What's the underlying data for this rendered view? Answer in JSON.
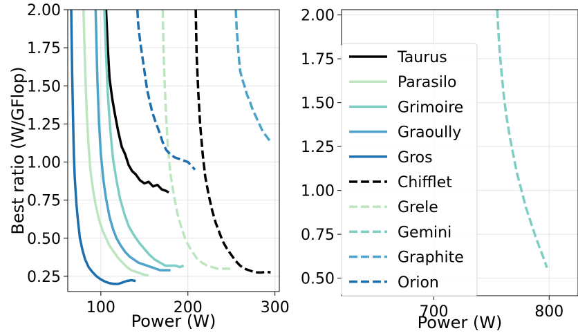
{
  "chart_data": [
    {
      "type": "line",
      "xlabel": "Power (W)",
      "ylabel": "Best ratio (W/GFlop)",
      "xlim": [
        62,
        305
      ],
      "ylim": [
        0.15,
        2.0
      ],
      "xticks": [
        "100",
        "200",
        "300"
      ],
      "yticks": [
        "0.25",
        "0.50",
        "0.75",
        "1.00",
        "1.25",
        "1.50",
        "1.75",
        "2.00"
      ],
      "grid": true,
      "series": [
        {
          "name": "Taurus",
          "color": "#000000",
          "dash": "solid",
          "x": [
            106,
            108,
            110,
            113,
            116,
            120,
            124,
            128,
            132,
            136,
            140,
            145,
            150,
            155,
            160,
            165,
            170,
            175,
            178
          ],
          "y": [
            2.0,
            1.75,
            1.55,
            1.42,
            1.32,
            1.2,
            1.1,
            1.05,
            0.98,
            0.94,
            0.92,
            0.88,
            0.86,
            0.87,
            0.84,
            0.85,
            0.82,
            0.81,
            0.8
          ]
        },
        {
          "name": "Parasilo",
          "color": "#bde5c0",
          "dash": "solid",
          "x": [
            80,
            82,
            84,
            86,
            88,
            91,
            94,
            98,
            102,
            106,
            110,
            115,
            120,
            125,
            130,
            135,
            140,
            145,
            150,
            155
          ],
          "y": [
            2.0,
            1.6,
            1.3,
            1.1,
            0.95,
            0.82,
            0.72,
            0.62,
            0.55,
            0.5,
            0.45,
            0.41,
            0.37,
            0.34,
            0.31,
            0.29,
            0.28,
            0.27,
            0.26,
            0.255
          ]
        },
        {
          "name": "Grimoire",
          "color": "#7ecec4",
          "dash": "solid",
          "x": [
            104,
            106,
            108,
            111,
            114,
            118,
            122,
            127,
            132,
            138,
            144,
            150,
            156,
            162,
            168,
            174,
            180,
            186,
            191,
            195
          ],
          "y": [
            2.0,
            1.7,
            1.45,
            1.2,
            1.02,
            0.88,
            0.76,
            0.66,
            0.58,
            0.52,
            0.47,
            0.43,
            0.39,
            0.36,
            0.34,
            0.32,
            0.32,
            0.32,
            0.31,
            0.32
          ]
        },
        {
          "name": "Graoully",
          "color": "#4da3c9",
          "dash": "solid",
          "x": [
            94,
            96,
            98,
            100,
            103,
            106,
            110,
            114,
            118,
            123,
            128,
            133,
            138,
            143,
            148,
            153,
            158,
            163,
            168,
            172,
            176,
            180
          ],
          "y": [
            2.0,
            1.55,
            1.25,
            1.05,
            0.88,
            0.76,
            0.64,
            0.56,
            0.5,
            0.45,
            0.41,
            0.38,
            0.36,
            0.34,
            0.33,
            0.32,
            0.31,
            0.3,
            0.29,
            0.29,
            0.29,
            0.29
          ]
        },
        {
          "name": "Gros",
          "color": "#1f6fad",
          "dash": "solid",
          "x": [
            66,
            67,
            68,
            69,
            70,
            72,
            74,
            76,
            79,
            82,
            86,
            90,
            95,
            100,
            105,
            110,
            115,
            120,
            125,
            130,
            135,
            140
          ],
          "y": [
            2.0,
            1.6,
            1.3,
            1.05,
            0.9,
            0.72,
            0.6,
            0.5,
            0.42,
            0.36,
            0.31,
            0.28,
            0.25,
            0.23,
            0.215,
            0.205,
            0.2,
            0.2,
            0.21,
            0.22,
            0.225,
            0.22
          ]
        },
        {
          "name": "Chifflet",
          "color": "#000000",
          "dash": "dashed",
          "x": [
            209,
            210,
            212,
            214,
            217,
            220,
            224,
            228,
            232,
            236,
            240,
            245,
            250,
            255,
            260,
            265,
            270,
            275,
            280,
            285,
            290,
            295
          ],
          "y": [
            2.0,
            1.7,
            1.45,
            1.25,
            1.05,
            0.9,
            0.78,
            0.68,
            0.6,
            0.54,
            0.48,
            0.43,
            0.39,
            0.35,
            0.32,
            0.3,
            0.29,
            0.28,
            0.275,
            0.275,
            0.28,
            0.275
          ]
        },
        {
          "name": "Grele",
          "color": "#bde5c0",
          "dash": "dashed",
          "x": [
            171,
            172,
            173,
            175,
            177,
            180,
            184,
            188,
            193,
            198,
            204,
            210,
            216,
            222,
            228,
            234,
            240,
            245,
            250
          ],
          "y": [
            2.0,
            1.75,
            1.55,
            1.3,
            1.1,
            0.92,
            0.78,
            0.66,
            0.56,
            0.48,
            0.42,
            0.37,
            0.34,
            0.32,
            0.31,
            0.3,
            0.3,
            0.3,
            0.3
          ]
        },
        {
          "name": "Graphite",
          "color": "#4da3c9",
          "dash": "dashed",
          "x": [
            255,
            256,
            258,
            260,
            262,
            265,
            268,
            271,
            274,
            278,
            282,
            286,
            290,
            294
          ],
          "y": [
            2.0,
            1.88,
            1.72,
            1.6,
            1.55,
            1.5,
            1.44,
            1.4,
            1.35,
            1.3,
            1.25,
            1.2,
            1.17,
            1.14
          ]
        },
        {
          "name": "Orion",
          "color": "#1f6fad",
          "dash": "dashed",
          "x": [
            142,
            143,
            145,
            147,
            150,
            153,
            156,
            159,
            163,
            167,
            171,
            175,
            180,
            185,
            190,
            195,
            200,
            205,
            208
          ],
          "y": [
            2.0,
            1.9,
            1.8,
            1.72,
            1.6,
            1.48,
            1.4,
            1.33,
            1.26,
            1.2,
            1.13,
            1.08,
            1.05,
            1.03,
            1.02,
            1.01,
            1.0,
            0.97,
            0.95
          ]
        }
      ]
    },
    {
      "type": "line",
      "xlabel": "Power (W)",
      "ylabel": "",
      "xlim": [
        620,
        825
      ],
      "ylim": [
        0.4,
        2.03
      ],
      "xticks": [
        "700",
        "800"
      ],
      "yticks": [
        "0.50",
        "0.75",
        "1.00",
        "1.25",
        "1.50",
        "1.75",
        "2.00"
      ],
      "grid": true,
      "series": [
        {
          "name": "Gemini",
          "color": "#7ecec4",
          "dash": "dashed",
          "x": [
            755,
            756,
            757,
            759,
            761,
            763,
            766,
            769,
            772,
            776,
            780,
            784,
            788,
            792,
            796,
            798
          ],
          "y": [
            2.03,
            1.9,
            1.8,
            1.65,
            1.52,
            1.42,
            1.3,
            1.2,
            1.1,
            1.0,
            0.9,
            0.82,
            0.74,
            0.67,
            0.6,
            0.56
          ]
        }
      ]
    }
  ],
  "legend": {
    "placement": "left side of right panel",
    "entries": [
      {
        "name": "Taurus",
        "color": "#000000",
        "dash": "solid"
      },
      {
        "name": "Parasilo",
        "color": "#bde5c0",
        "dash": "solid"
      },
      {
        "name": "Grimoire",
        "color": "#7ecec4",
        "dash": "solid"
      },
      {
        "name": "Graoully",
        "color": "#4da3c9",
        "dash": "solid"
      },
      {
        "name": "Gros",
        "color": "#1f6fad",
        "dash": "solid"
      },
      {
        "name": "Chifflet",
        "color": "#000000",
        "dash": "dashed"
      },
      {
        "name": "Grele",
        "color": "#bde5c0",
        "dash": "dashed"
      },
      {
        "name": "Gemini",
        "color": "#7ecec4",
        "dash": "dashed"
      },
      {
        "name": "Graphite",
        "color": "#4da3c9",
        "dash": "dashed"
      },
      {
        "name": "Orion",
        "color": "#1f6fad",
        "dash": "dashed"
      }
    ]
  }
}
